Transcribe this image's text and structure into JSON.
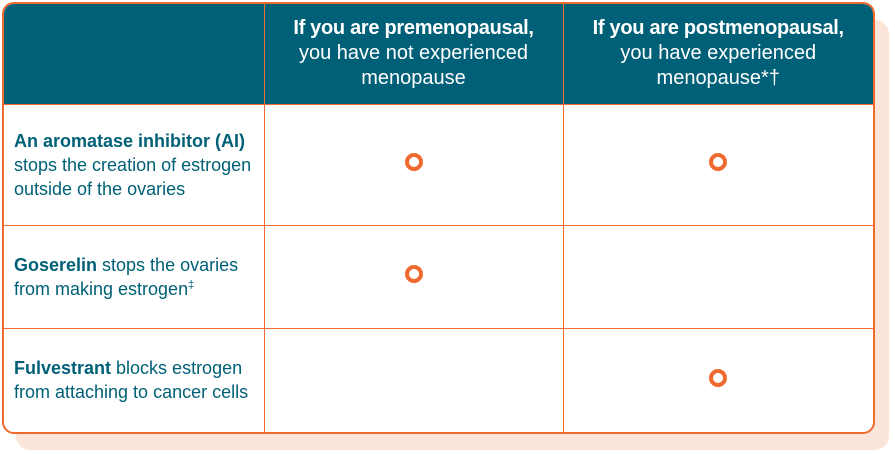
{
  "header": {
    "col1_bold": "If you are premenopausal,",
    "col1_rest": "you have not experienced menopause",
    "col2_bold": "If you are postmenopausal,",
    "col2_rest": "you have experienced menopause*†"
  },
  "rows": [
    {
      "name_bold": "An aromatase inhibitor (AI)",
      "desc": " stops the creation of estrogen outside of the ovaries",
      "sup": "",
      "premenopausal": true,
      "postmenopausal": true
    },
    {
      "name_bold": "Goserelin",
      "desc": " stops the ovaries from making estrogen",
      "sup": "‡",
      "premenopausal": true,
      "postmenopausal": false
    },
    {
      "name_bold": "Fulvestrant",
      "desc": " blocks estrogen from attaching to cancer cells",
      "sup": "",
      "premenopausal": false,
      "postmenopausal": true
    }
  ],
  "colors": {
    "header_bg": "#006077",
    "accent": "#ef6a2e",
    "label_text": "#006077",
    "shadow": "#fbe5d8"
  },
  "icons": {
    "applies_marker": "orange-ring-icon"
  }
}
